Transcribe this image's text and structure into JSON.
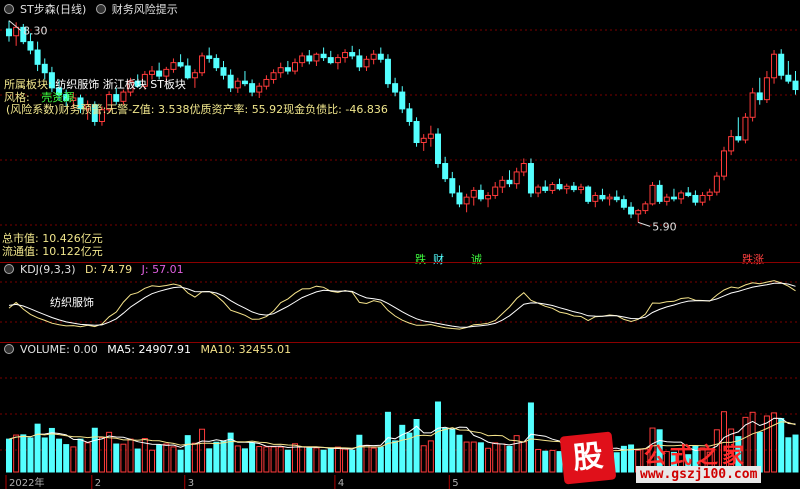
{
  "colors": {
    "up": "#ff3b3b",
    "down": "#54ffff",
    "grid": "#7a0000",
    "k_line": "#ffffff",
    "d_line": "#f5e38a",
    "j_line": "#e060e0",
    "ma5": "#ffffff",
    "ma10": "#f5e38a"
  },
  "header": {
    "title": "ST步森(日线)",
    "indicator": "财务风险提示"
  },
  "price_panel": {
    "high_label": "8.30",
    "low_label": "5.90",
    "info": {
      "sector_label": "所属板块:",
      "sectors": "纺织服饰 浙江板块 ST板块",
      "style_label": "风格:",
      "style_value": "壳资源",
      "risk_line": "(风险系数)财务预警:无警-Z值: 3.538优质资产率: 55.92现金负债比: -46.836",
      "total_mcap": "总市值: 10.426亿元",
      "float_mcap": "流通值: 10.122亿元"
    },
    "tags": [
      {
        "text": "跌",
        "color": "#40ff40"
      },
      {
        "text": "财",
        "color": "#54ffff"
      },
      {
        "text": "诚",
        "color": "#40ff40"
      },
      {
        "text": "跌涨",
        "color": "#ff4040"
      }
    ]
  },
  "kdj_panel": {
    "header_name": "KDJ(9,3,3)",
    "d_label": "D: 74.79",
    "j_label": "J: 57.01",
    "annotation": "纺织服饰"
  },
  "volume_panel": {
    "header": "VOLUME: 0.00",
    "ma5_label": "MA5: 24907.91",
    "ma10_label": "MA10: 32455.01"
  },
  "axis": {
    "labels": [
      "2022年",
      "2",
      "3",
      "4",
      "5"
    ]
  },
  "watermark": {
    "glyph": "股",
    "title": "公式之家",
    "url": "www.gszj100.com"
  },
  "chart_data": {
    "type": "candlestick",
    "title": "ST步森(日线)",
    "price_range": [
      5.5,
      8.45
    ],
    "high": 8.3,
    "low": 5.9,
    "candles": [
      [
        8.2,
        8.3,
        8.05,
        8.12
      ],
      [
        8.12,
        8.28,
        8.0,
        8.22
      ],
      [
        8.22,
        8.26,
        8.02,
        8.05
      ],
      [
        8.05,
        8.15,
        7.9,
        7.95
      ],
      [
        7.95,
        8.05,
        7.7,
        7.78
      ],
      [
        7.78,
        7.85,
        7.6,
        7.68
      ],
      [
        7.68,
        7.75,
        7.45,
        7.5
      ],
      [
        7.5,
        7.6,
        7.35,
        7.42
      ],
      [
        7.42,
        7.48,
        7.28,
        7.35
      ],
      [
        7.35,
        7.45,
        7.25,
        7.38
      ],
      [
        7.38,
        7.42,
        7.2,
        7.25
      ],
      [
        7.25,
        7.35,
        7.12,
        7.3
      ],
      [
        7.3,
        7.34,
        7.05,
        7.1
      ],
      [
        7.1,
        7.28,
        7.05,
        7.24
      ],
      [
        7.24,
        7.46,
        7.2,
        7.42
      ],
      [
        7.42,
        7.5,
        7.3,
        7.34
      ],
      [
        7.34,
        7.48,
        7.3,
        7.45
      ],
      [
        7.45,
        7.62,
        7.4,
        7.58
      ],
      [
        7.58,
        7.66,
        7.5,
        7.52
      ],
      [
        7.52,
        7.7,
        7.48,
        7.66
      ],
      [
        7.66,
        7.76,
        7.6,
        7.7
      ],
      [
        7.7,
        7.8,
        7.6,
        7.64
      ],
      [
        7.64,
        7.75,
        7.55,
        7.72
      ],
      [
        7.72,
        7.85,
        7.68,
        7.8
      ],
      [
        7.8,
        7.9,
        7.74,
        7.76
      ],
      [
        7.76,
        7.85,
        7.6,
        7.62
      ],
      [
        7.62,
        7.72,
        7.5,
        7.68
      ],
      [
        7.68,
        7.92,
        7.64,
        7.88
      ],
      [
        7.88,
        7.98,
        7.8,
        7.85
      ],
      [
        7.85,
        7.9,
        7.7,
        7.74
      ],
      [
        7.74,
        7.82,
        7.6,
        7.65
      ],
      [
        7.65,
        7.72,
        7.45,
        7.5
      ],
      [
        7.5,
        7.62,
        7.44,
        7.58
      ],
      [
        7.58,
        7.7,
        7.52,
        7.55
      ],
      [
        7.55,
        7.6,
        7.4,
        7.45
      ],
      [
        7.45,
        7.56,
        7.38,
        7.52
      ],
      [
        7.52,
        7.65,
        7.48,
        7.6
      ],
      [
        7.6,
        7.72,
        7.55,
        7.68
      ],
      [
        7.68,
        7.8,
        7.62,
        7.74
      ],
      [
        7.74,
        7.82,
        7.66,
        7.7
      ],
      [
        7.7,
        7.85,
        7.66,
        7.8
      ],
      [
        7.8,
        7.92,
        7.75,
        7.88
      ],
      [
        7.88,
        7.95,
        7.78,
        7.82
      ],
      [
        7.82,
        7.92,
        7.76,
        7.9
      ],
      [
        7.9,
        7.98,
        7.82,
        7.86
      ],
      [
        7.86,
        7.94,
        7.78,
        7.8
      ],
      [
        7.8,
        7.9,
        7.72,
        7.86
      ],
      [
        7.86,
        7.96,
        7.8,
        7.92
      ],
      [
        7.92,
        8.0,
        7.84,
        7.88
      ],
      [
        7.88,
        7.96,
        7.7,
        7.75
      ],
      [
        7.75,
        7.88,
        7.7,
        7.84
      ],
      [
        7.84,
        7.95,
        7.78,
        7.9
      ],
      [
        7.9,
        7.98,
        7.8,
        7.84
      ],
      [
        7.84,
        7.9,
        7.5,
        7.55
      ],
      [
        7.55,
        7.62,
        7.4,
        7.45
      ],
      [
        7.45,
        7.52,
        7.2,
        7.25
      ],
      [
        7.25,
        7.32,
        7.05,
        7.1
      ],
      [
        7.1,
        7.15,
        6.8,
        6.85
      ],
      [
        6.85,
        6.95,
        6.75,
        6.9
      ],
      [
        6.9,
        7.05,
        6.8,
        6.95
      ],
      [
        6.95,
        7.02,
        6.55,
        6.6
      ],
      [
        6.6,
        6.68,
        6.38,
        6.42
      ],
      [
        6.42,
        6.5,
        6.2,
        6.25
      ],
      [
        6.25,
        6.34,
        6.08,
        6.12
      ],
      [
        6.12,
        6.24,
        6.02,
        6.2
      ],
      [
        6.2,
        6.32,
        6.1,
        6.28
      ],
      [
        6.28,
        6.35,
        6.15,
        6.18
      ],
      [
        6.18,
        6.26,
        6.08,
        6.22
      ],
      [
        6.22,
        6.38,
        6.18,
        6.32
      ],
      [
        6.32,
        6.45,
        6.25,
        6.4
      ],
      [
        6.4,
        6.52,
        6.32,
        6.36
      ],
      [
        6.36,
        6.55,
        6.3,
        6.5
      ],
      [
        6.5,
        6.66,
        6.45,
        6.6
      ],
      [
        6.6,
        6.66,
        6.2,
        6.25
      ],
      [
        6.25,
        6.35,
        6.2,
        6.32
      ],
      [
        6.32,
        6.4,
        6.25,
        6.28
      ],
      [
        6.28,
        6.38,
        6.24,
        6.35
      ],
      [
        6.35,
        6.42,
        6.28,
        6.3
      ],
      [
        6.3,
        6.36,
        6.24,
        6.33
      ],
      [
        6.33,
        6.38,
        6.26,
        6.29
      ],
      [
        6.29,
        6.36,
        6.24,
        6.32
      ],
      [
        6.32,
        6.34,
        6.12,
        6.15
      ],
      [
        6.15,
        6.26,
        6.08,
        6.22
      ],
      [
        6.22,
        6.3,
        6.15,
        6.18
      ],
      [
        6.18,
        6.24,
        6.1,
        6.2
      ],
      [
        6.2,
        6.28,
        6.14,
        6.17
      ],
      [
        6.17,
        6.22,
        6.05,
        6.08
      ],
      [
        6.08,
        6.14,
        5.95,
        6.0
      ],
      [
        6.0,
        6.06,
        5.9,
        6.04
      ],
      [
        6.04,
        6.15,
        6.0,
        6.12
      ],
      [
        6.12,
        6.38,
        6.1,
        6.34
      ],
      [
        6.34,
        6.4,
        6.12,
        6.15
      ],
      [
        6.15,
        6.24,
        6.1,
        6.2
      ],
      [
        6.2,
        6.3,
        6.15,
        6.18
      ],
      [
        6.18,
        6.28,
        6.12,
        6.25
      ],
      [
        6.25,
        6.32,
        6.2,
        6.22
      ],
      [
        6.22,
        6.28,
        6.1,
        6.14
      ],
      [
        6.14,
        6.26,
        6.1,
        6.22
      ],
      [
        6.22,
        6.3,
        6.16,
        6.26
      ],
      [
        6.26,
        6.5,
        6.22,
        6.45
      ],
      [
        6.45,
        6.8,
        6.4,
        6.75
      ],
      [
        6.75,
        7.0,
        6.7,
        6.92
      ],
      [
        6.92,
        7.15,
        6.85,
        6.88
      ],
      [
        6.88,
        7.2,
        6.84,
        7.15
      ],
      [
        7.15,
        7.5,
        7.1,
        7.44
      ],
      [
        7.44,
        7.62,
        7.3,
        7.36
      ],
      [
        7.36,
        7.7,
        7.32,
        7.62
      ],
      [
        7.62,
        7.95,
        7.55,
        7.9
      ],
      [
        7.9,
        7.96,
        7.6,
        7.65
      ],
      [
        7.65,
        7.82,
        7.55,
        7.58
      ],
      [
        7.58,
        7.7,
        7.42,
        7.48
      ]
    ],
    "volume_ma5": 24907.91,
    "volume_ma10": 32455.01,
    "kdj_d": 74.79,
    "kdj_j": 57.01
  }
}
